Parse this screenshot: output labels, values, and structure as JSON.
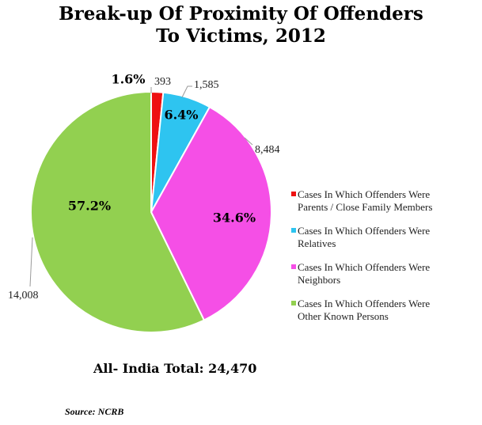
{
  "title": {
    "line1": "Break-up Of Proximity Of Offenders",
    "line2": "To Victims, 2012"
  },
  "chart_data": {
    "type": "pie",
    "slices": [
      {
        "label": "Cases In Which Offenders Were Parents / Close Family Members",
        "value": 393,
        "percent_label": "1.6%",
        "value_label": "393",
        "color": "#ee1111"
      },
      {
        "label": "Cases In Which Offenders Were Relatives",
        "value": 1585,
        "percent_label": "6.4%",
        "value_label": "1,585",
        "color": "#2ec4f0"
      },
      {
        "label": "Cases In Which Offenders Were Neighbors",
        "value": 8484,
        "percent_label": "34.6%",
        "value_label": "8,484",
        "color": "#f54fe6"
      },
      {
        "label": "Cases In Which Offenders Were Other Known Persons",
        "value": 14008,
        "percent_label": "57.2%",
        "value_label": "14,008",
        "color": "#92d050"
      }
    ],
    "legend_position": "right"
  },
  "legend": {
    "items": [
      {
        "line1": "Cases In Which Offenders Were",
        "line2": "Parents / Close Family Members",
        "color": "#ee1111"
      },
      {
        "line1": "Cases In Which Offenders Were",
        "line2": "Relatives",
        "color": "#2ec4f0"
      },
      {
        "line1": "Cases In Which Offenders Were",
        "line2": "Neighbors",
        "color": "#f54fe6"
      },
      {
        "line1": "Cases In Which Offenders Were",
        "line2": "Other Known Persons",
        "color": "#92d050"
      }
    ]
  },
  "total_label": "All- India Total: 24,470",
  "source_label": "Source: NCRB"
}
